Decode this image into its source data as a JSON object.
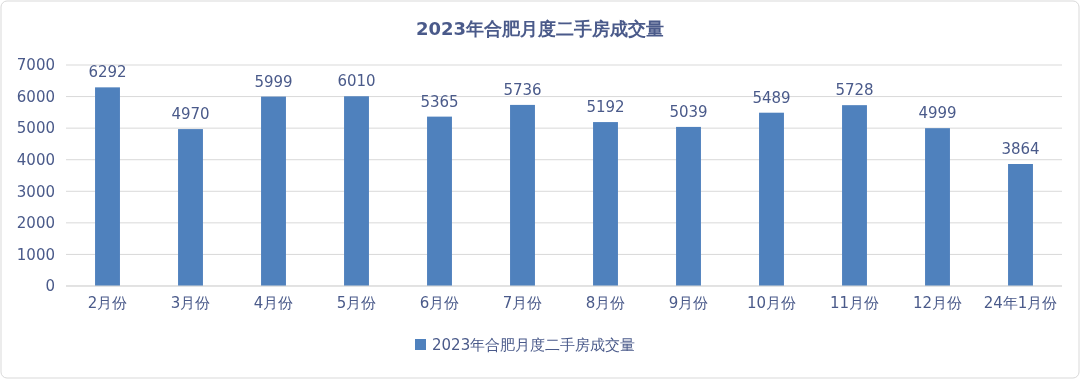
{
  "chart_data": {
    "type": "bar",
    "title": "2023年合肥月度二手房成交量",
    "categories": [
      "2月份",
      "3月份",
      "4月份",
      "5月份",
      "6月份",
      "7月份",
      "8月份",
      "9月份",
      "10月份",
      "11月份",
      "12月份",
      "24年1月份"
    ],
    "series": [
      {
        "name": "2023年合肥月度二手房成交量",
        "color": "#4f81bd",
        "values": [
          6292,
          4970,
          5999,
          6010,
          5365,
          5736,
          5192,
          5039,
          5489,
          5728,
          4999,
          3864
        ]
      }
    ],
    "ylim": [
      0,
      7000
    ],
    "yticks": [
      0,
      1000,
      2000,
      3000,
      4000,
      5000,
      6000,
      7000
    ],
    "grid": "y",
    "legend": "bottom",
    "data_labels": true
  }
}
